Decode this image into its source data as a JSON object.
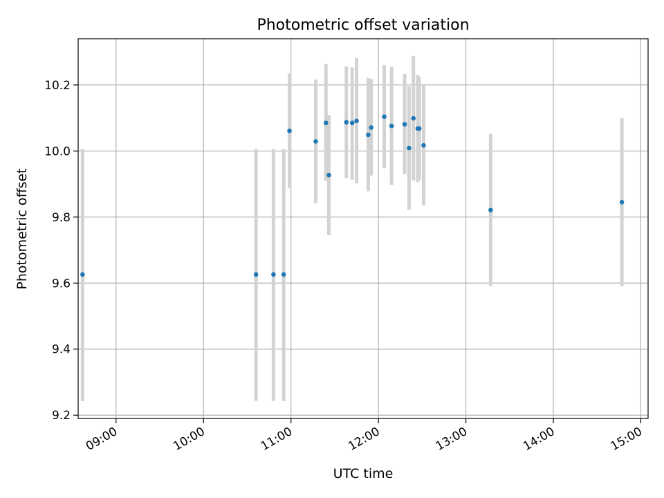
{
  "chart_data": {
    "type": "scatter",
    "title": "Photometric offset variation",
    "xlabel": "UTC time",
    "ylabel": "Photometric offset",
    "xlim": [
      "08:34",
      "15:05"
    ],
    "ylim": [
      9.19,
      10.34
    ],
    "x_ticks": [
      "09:00",
      "10:00",
      "11:00",
      "12:00",
      "13:00",
      "14:00",
      "15:00"
    ],
    "y_ticks": [
      "9.2",
      "9.4",
      "9.6",
      "9.8",
      "10.0",
      "10.2"
    ],
    "grid": true,
    "colors": {
      "point": "#1f77b4",
      "errorbar": "#d3d3d3",
      "grid": "#b0b0b0"
    },
    "points": [
      {
        "t": "08:37",
        "y": 9.626,
        "lo": 9.243,
        "hi": 10.006
      },
      {
        "t": "10:36",
        "y": 9.626,
        "lo": 9.243,
        "hi": 10.006
      },
      {
        "t": "10:48",
        "y": 9.626,
        "lo": 9.243,
        "hi": 10.006
      },
      {
        "t": "10:55",
        "y": 9.626,
        "lo": 9.243,
        "hi": 10.006
      },
      {
        "t": "10:59",
        "y": 10.061,
        "lo": 9.887,
        "hi": 10.235
      },
      {
        "t": "11:17",
        "y": 10.029,
        "lo": 9.842,
        "hi": 10.216
      },
      {
        "t": "11:24",
        "y": 10.085,
        "lo": 9.91,
        "hi": 10.263
      },
      {
        "t": "11:26",
        "y": 9.927,
        "lo": 9.745,
        "hi": 10.109
      },
      {
        "t": "11:38",
        "y": 10.087,
        "lo": 9.918,
        "hi": 10.256
      },
      {
        "t": "11:42",
        "y": 10.085,
        "lo": 9.913,
        "hi": 10.253
      },
      {
        "t": "11:45",
        "y": 10.091,
        "lo": 9.902,
        "hi": 10.281
      },
      {
        "t": "11:53",
        "y": 10.049,
        "lo": 9.878,
        "hi": 10.221
      },
      {
        "t": "11:55",
        "y": 10.071,
        "lo": 9.926,
        "hi": 10.218
      },
      {
        "t": "12:04",
        "y": 10.104,
        "lo": 9.948,
        "hi": 10.26
      },
      {
        "t": "12:09",
        "y": 10.076,
        "lo": 9.897,
        "hi": 10.255
      },
      {
        "t": "12:18",
        "y": 10.081,
        "lo": 9.93,
        "hi": 10.233
      },
      {
        "t": "12:21",
        "y": 10.009,
        "lo": 9.822,
        "hi": 10.196
      },
      {
        "t": "12:24",
        "y": 10.099,
        "lo": 9.911,
        "hi": 10.288
      },
      {
        "t": "12:27",
        "y": 10.068,
        "lo": 9.906,
        "hi": 10.23
      },
      {
        "t": "12:28",
        "y": 10.068,
        "lo": 9.913,
        "hi": 10.223
      },
      {
        "t": "12:31",
        "y": 10.017,
        "lo": 9.835,
        "hi": 10.199
      },
      {
        "t": "13:17",
        "y": 9.821,
        "lo": 9.59,
        "hi": 10.052
      },
      {
        "t": "14:47",
        "y": 9.845,
        "lo": 9.59,
        "hi": 10.1
      }
    ]
  }
}
